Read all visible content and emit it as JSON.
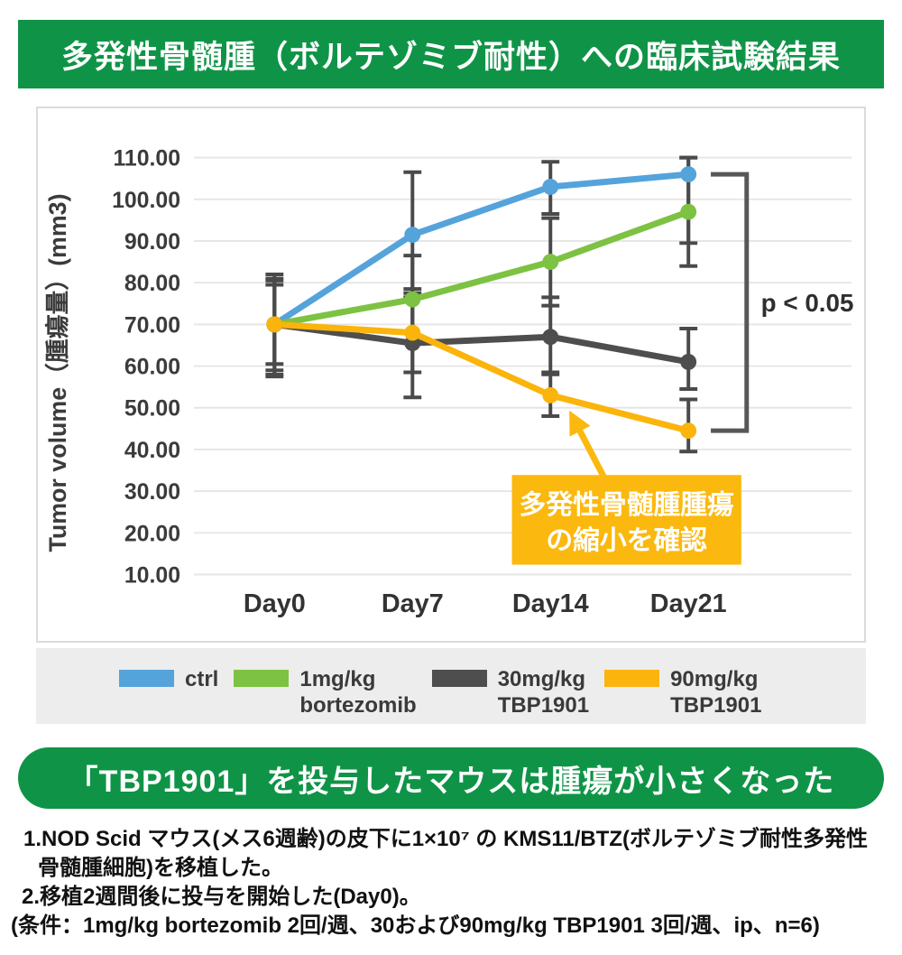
{
  "title_banner": {
    "text": "多発性骨髄腫（ボルテゾミブ耐性）への臨床試験結果",
    "bg": "#0F9447",
    "fg": "#ffffff"
  },
  "chart_data": {
    "type": "line",
    "title": "",
    "xlabel": "",
    "ylabel": "Tumor volume（腫瘍量）(mm3)",
    "ylim": [
      10,
      110
    ],
    "ytick_step": 10,
    "ytick_format": "2-decimals",
    "grid": true,
    "legend_position": "bottom",
    "error_bar_color": "#4A4A4A",
    "categories": [
      "Day0",
      "Day7",
      "Day14",
      "Day21"
    ],
    "series": [
      {
        "name": "ctrl",
        "color": "#55A3DB",
        "values": [
          70,
          91.5,
          103,
          106
        ],
        "error_lo": [
          58,
          76.5,
          96.5,
          89.5
        ],
        "error_hi": [
          82,
          106.5,
          109,
          110
        ]
      },
      {
        "name": "1mg/kg bortezomib",
        "color": "#7DC242",
        "values": [
          70,
          76,
          85,
          97
        ],
        "error_lo": [
          60.5,
          65.5,
          74.5,
          84
        ],
        "error_hi": [
          79.5,
          86.5,
          95.5,
          110
        ]
      },
      {
        "name": "30mg/kg TBP1901",
        "color": "#4E4E4E",
        "values": [
          70,
          65.5,
          67,
          61
        ],
        "error_lo": [
          57.5,
          52.5,
          58.5,
          54.5
        ],
        "error_hi": [
          80.5,
          78.5,
          76.5,
          69
        ]
      },
      {
        "name": "90mg/kg TBP1901",
        "color": "#FBB40B",
        "values": [
          70,
          68,
          53,
          44.5
        ],
        "error_lo": [
          59,
          58.5,
          48,
          39.5
        ],
        "error_hi": [
          81,
          77.5,
          58,
          52
        ]
      }
    ],
    "annotations": {
      "p_value": {
        "text": "p < 0.05",
        "from_series": "ctrl",
        "to_series": "90mg/kg TBP1901",
        "at_category": "Day21"
      },
      "callout": {
        "lines": [
          "多発性骨髄腫腫瘍",
          "の縮小を確認"
        ],
        "bg": "#FBB80E",
        "fg": "#ffffff",
        "points_to_series": "90mg/kg TBP1901",
        "points_to_category": "Day14"
      }
    }
  },
  "legend": {
    "items": [
      {
        "label_lines": [
          "ctrl"
        ],
        "color": "#55A3DB"
      },
      {
        "label_lines": [
          "1mg/kg",
          "bortezomib"
        ],
        "color": "#7DC242"
      },
      {
        "label_lines": [
          "30mg/kg",
          "TBP1901"
        ],
        "color": "#4E4E4E"
      },
      {
        "label_lines": [
          "90mg/kg",
          "TBP1901"
        ],
        "color": "#FBB40B"
      }
    ]
  },
  "conclusion_banner": {
    "text": "「TBP1901」を投与したマウスは腫瘍が小さくなった",
    "bg": "#0F9447",
    "fg": "#ffffff"
  },
  "footnotes": {
    "lines": [
      "1.NOD Scid マウス(メス6週齢)の皮下に1×10⁷ の KMS11/BTZ(ボルテゾミブ耐性多発性",
      "骨髄腫細胞)を移植した。",
      "2.移植2週間後に投与を開始した(Day0)。",
      "(条件：1mg/kg bortezomib 2回/週、30および90mg/kg TBP1901 3回/週、ip、n=6)"
    ]
  }
}
